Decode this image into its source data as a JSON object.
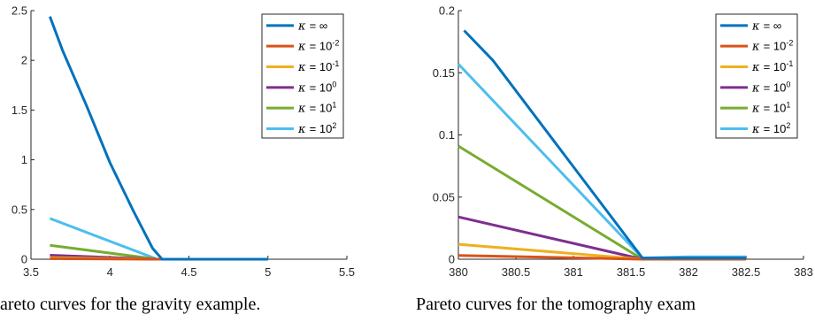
{
  "captions": {
    "left": "areto curves for the gravity example.",
    "right": "Pareto curves for the tomography exam"
  },
  "legend_entries": [
    {
      "greek": "κ",
      "base": "= ∞",
      "exp": ""
    },
    {
      "greek": "κ",
      "base": "= 10",
      "exp": "-2"
    },
    {
      "greek": "κ",
      "base": "= 10",
      "exp": "-1"
    },
    {
      "greek": "κ",
      "base": "= 10",
      "exp": "0"
    },
    {
      "greek": "κ",
      "base": "= 10",
      "exp": "1"
    },
    {
      "greek": "κ",
      "base": "= 10",
      "exp": "2"
    }
  ],
  "chart_data": [
    {
      "type": "line",
      "title": "",
      "xlabel": "",
      "ylabel": "",
      "xlim": [
        3.5,
        5.5
      ],
      "ylim": [
        0,
        2.5
      ],
      "xticks": [
        "3.5",
        "4",
        "4.5",
        "5",
        "5.5"
      ],
      "yticks": [
        "0",
        "0.5",
        "1",
        "1.5",
        "2",
        "2.5"
      ],
      "grid": false,
      "legend_position": "top-right",
      "series": [
        {
          "name": "κ = ∞",
          "color": "#0072BD",
          "x": [
            3.62,
            3.7,
            3.85,
            4.0,
            4.15,
            4.27,
            4.33,
            5.0
          ],
          "y": [
            2.44,
            2.1,
            1.55,
            0.97,
            0.48,
            0.11,
            0.0,
            0.0
          ]
        },
        {
          "name": "κ = 10^-2",
          "color": "#D95319",
          "x": [
            3.62,
            4.3,
            5.0
          ],
          "y": [
            0.005,
            0.0,
            0.0
          ]
        },
        {
          "name": "κ = 10^-1",
          "color": "#EDB120",
          "x": [
            3.62,
            4.3,
            5.0
          ],
          "y": [
            0.015,
            0.0,
            0.0
          ]
        },
        {
          "name": "κ = 10^0",
          "color": "#7E2F8E",
          "x": [
            3.62,
            4.3,
            5.0
          ],
          "y": [
            0.04,
            0.0,
            0.0
          ]
        },
        {
          "name": "κ = 10^1",
          "color": "#77AC30",
          "x": [
            3.62,
            4.3,
            5.0
          ],
          "y": [
            0.14,
            0.0,
            0.0
          ]
        },
        {
          "name": "κ = 10^2",
          "color": "#4DBEEE",
          "x": [
            3.62,
            4.3,
            5.0
          ],
          "y": [
            0.41,
            0.0,
            0.0
          ]
        }
      ]
    },
    {
      "type": "line",
      "title": "",
      "xlabel": "",
      "ylabel": "",
      "xlim": [
        380,
        383
      ],
      "ylim": [
        0,
        0.2
      ],
      "xticks": [
        "380",
        "380.5",
        "381",
        "381.5",
        "382",
        "382.5",
        "383"
      ],
      "yticks": [
        "0",
        "0.05",
        "0.1",
        "0.15",
        "0.2"
      ],
      "grid": false,
      "legend_position": "top-right",
      "series": [
        {
          "name": "κ = ∞",
          "color": "#0072BD",
          "x": [
            380.05,
            380.3,
            381.6,
            382.0,
            382.5
          ],
          "y": [
            0.184,
            0.16,
            0.001,
            0.001,
            0.001
          ]
        },
        {
          "name": "κ = 10^-2",
          "color": "#D95319",
          "x": [
            380.0,
            381.6,
            382.0,
            382.5
          ],
          "y": [
            0.003,
            0.0,
            0.0,
            0.0
          ]
        },
        {
          "name": "κ = 10^-1",
          "color": "#EDB120",
          "x": [
            380.0,
            381.6,
            382.0,
            382.5
          ],
          "y": [
            0.012,
            0.0,
            0.0,
            0.0
          ]
        },
        {
          "name": "κ = 10^0",
          "color": "#7E2F8E",
          "x": [
            380.0,
            381.6,
            382.0,
            382.5
          ],
          "y": [
            0.034,
            0.0,
            0.0,
            0.0
          ]
        },
        {
          "name": "κ = 10^1",
          "color": "#77AC30",
          "x": [
            380.0,
            381.6,
            382.0,
            382.5
          ],
          "y": [
            0.091,
            0.0,
            0.001,
            0.0
          ]
        },
        {
          "name": "κ = 10^2",
          "color": "#4DBEEE",
          "x": [
            380.0,
            381.6,
            382.0,
            382.5
          ],
          "y": [
            0.157,
            0.001,
            0.002,
            0.002
          ]
        }
      ]
    }
  ]
}
